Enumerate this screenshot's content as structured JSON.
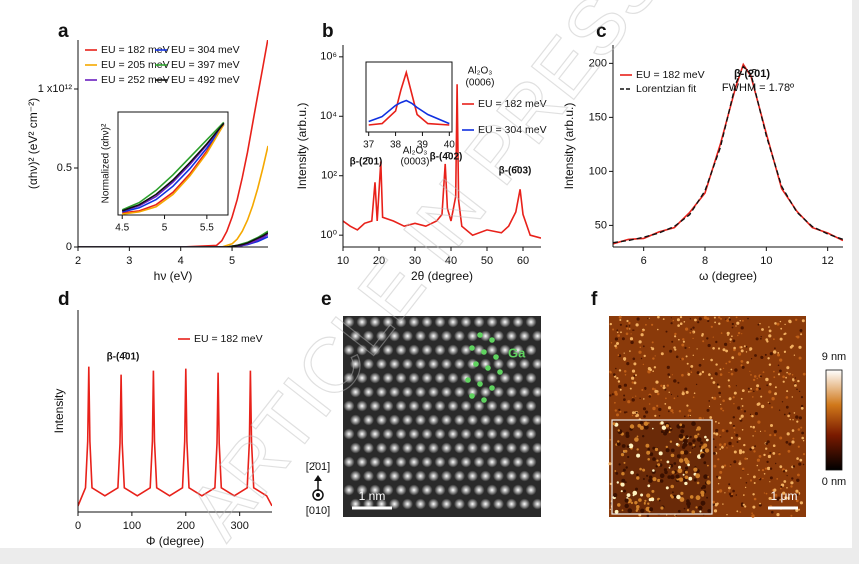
{
  "chart_data": [
    {
      "type": "line",
      "panel_label": "a",
      "xlabel": "hν (eV)",
      "ylabel": "(αhν)² (eV² cm⁻²)",
      "x": [
        2,
        3,
        4,
        4.7,
        4.8,
        4.9,
        5.0,
        5.1,
        5.2,
        5.3,
        5.4,
        5.5,
        5.6,
        5.7
      ],
      "xlim": [
        2,
        5.7
      ],
      "xticks": [
        2,
        3,
        4,
        5
      ],
      "ylim": [
        0,
        1.31
      ],
      "yticks": [
        0,
        0.5,
        {
          "value": 1,
          "label": "1 x10¹²"
        }
      ],
      "series": [
        {
          "name": "EU = 182 meV",
          "color": "#e8211a",
          "values": [
            0,
            0,
            0,
            0.01,
            0.04,
            0.1,
            0.19,
            0.3,
            0.44,
            0.6,
            0.78,
            0.96,
            1.14,
            1.32
          ]
        },
        {
          "name": "EU = 304 meV",
          "color": "#1030e0",
          "values": [
            0,
            0,
            0,
            0,
            0,
            0,
            0,
            0.005,
            0.01,
            0.015,
            0.025,
            0.035,
            0.05,
            0.065
          ]
        },
        {
          "name": "EU = 205 meV",
          "color": "#f5a800",
          "values": [
            0,
            0,
            0,
            0,
            0,
            0.01,
            0.02,
            0.05,
            0.1,
            0.17,
            0.26,
            0.37,
            0.5,
            0.64
          ]
        },
        {
          "name": "EU = 397 meV",
          "color": "#2ca02c",
          "values": [
            0,
            0,
            0,
            0,
            0,
            0,
            0.005,
            0.01,
            0.02,
            0.03,
            0.045,
            0.06,
            0.08,
            0.1
          ]
        },
        {
          "name": "EU = 252 meV",
          "color": "#6a1fc0",
          "values": [
            0,
            0,
            0,
            0,
            0,
            0,
            0,
            0.005,
            0.01,
            0.02,
            0.03,
            0.045,
            0.06,
            0.08
          ]
        },
        {
          "name": "EU = 492 meV",
          "color": "#111111",
          "values": [
            0,
            0,
            0,
            0,
            0,
            0,
            0.005,
            0.01,
            0.015,
            0.025,
            0.04,
            0.055,
            0.07,
            0.09
          ]
        }
      ],
      "inset": {
        "type": "line",
        "ylabel": "Normalized (αhν)²",
        "x": [
          4.5,
          4.7,
          4.9,
          5.1,
          5.3,
          5.5,
          5.7
        ],
        "xlim": [
          4.45,
          5.75
        ],
        "xticks": [
          4.5,
          5,
          5.5
        ],
        "ylim": [
          0,
          1
        ],
        "series": [
          {
            "color": "#e8211a",
            "values": [
              0.02,
              0.04,
              0.1,
              0.22,
              0.4,
              0.62,
              0.88
            ]
          },
          {
            "color": "#1030e0",
            "values": [
              0.03,
              0.07,
              0.15,
              0.28,
              0.45,
              0.65,
              0.88
            ]
          },
          {
            "color": "#f5a800",
            "values": [
              0.01,
              0.03,
              0.08,
              0.2,
              0.38,
              0.6,
              0.88
            ]
          },
          {
            "color": "#2ca02c",
            "values": [
              0.05,
              0.12,
              0.24,
              0.39,
              0.56,
              0.73,
              0.9
            ]
          },
          {
            "color": "#6a1fc0",
            "values": [
              0.04,
              0.09,
              0.18,
              0.32,
              0.49,
              0.68,
              0.89
            ]
          },
          {
            "color": "#111111",
            "values": [
              0.04,
              0.1,
              0.2,
              0.34,
              0.51,
              0.69,
              0.89
            ]
          }
        ]
      }
    },
    {
      "type": "line",
      "panel_label": "b",
      "xlabel": "2θ (degree)",
      "ylabel": "Intensity (arb.u.)",
      "log": true,
      "x": [
        10,
        12,
        14,
        16,
        18,
        18.9,
        19.5,
        20.5,
        21,
        24,
        27,
        30,
        33,
        36,
        37.5,
        38.4,
        39,
        40,
        41.3,
        41.7,
        42.1,
        43,
        46,
        50,
        54,
        56,
        58,
        59.2,
        60,
        62,
        65
      ],
      "xlim": [
        10,
        65
      ],
      "xticks": [
        10,
        20,
        30,
        40,
        50,
        60
      ],
      "ylim": [
        0.4,
        2500000
      ],
      "yticks": [
        {
          "value": 1,
          "label": "10⁰"
        },
        {
          "value": 100,
          "label": "10²"
        },
        {
          "value": 10000,
          "label": "10⁴"
        },
        {
          "value": 1000000,
          "label": "10⁶"
        }
      ],
      "series": [
        {
          "color": "#e8211a",
          "values": [
            3,
            2,
            1.5,
            2.5,
            3,
            60,
            3,
            300,
            4,
            3,
            2,
            2.5,
            2,
            3,
            5,
            250,
            8,
            3,
            20,
            120000,
            15,
            2,
            1,
            1.5,
            1.2,
            2,
            6,
            35,
            5,
            1,
            0.8
          ]
        }
      ],
      "annotations": [
        "β-(2̄01)",
        "Al₂O₃",
        "(0003)",
        "β-(4̄02)",
        "Al₂O₃",
        "(0006)",
        "β-(6̄03)"
      ],
      "inset": {
        "type": "line",
        "x": [
          37,
          37.5,
          38,
          38.2,
          38.4,
          38.6,
          38.8,
          39.2,
          40
        ],
        "xlim": [
          36.9,
          40.1
        ],
        "xticks": [
          37,
          38,
          39,
          40
        ],
        "ylim": [
          0,
          1
        ],
        "series": [
          {
            "name": "EU = 182 meV",
            "color": "#e8211a",
            "values": [
              0.1,
              0.12,
              0.3,
              0.6,
              0.85,
              0.55,
              0.25,
              0.12,
              0.1
            ]
          },
          {
            "name": "EU = 304 meV",
            "color": "#1030e0",
            "values": [
              0.15,
              0.22,
              0.38,
              0.42,
              0.45,
              0.41,
              0.35,
              0.25,
              0.12
            ]
          }
        ]
      }
    },
    {
      "type": "line",
      "panel_label": "c",
      "xlabel": "ω (degree)",
      "ylabel": "Intensity (arb.u.)",
      "x": [
        5,
        5.5,
        6,
        6.5,
        7,
        7.5,
        8,
        8.5,
        9,
        9.25,
        9.5,
        10,
        10.5,
        11,
        11.5,
        12,
        12.5
      ],
      "xlim": [
        5,
        12.5
      ],
      "xticks": [
        6,
        8,
        10,
        12
      ],
      "ylim": [
        30,
        217
      ],
      "yticks": [
        50,
        100,
        150,
        200
      ],
      "series": [
        {
          "name": "EU = 182 meV",
          "color": "#e8211a",
          "values": [
            33,
            37,
            38,
            44,
            48,
            62,
            80,
            125,
            178,
            199,
            188,
            135,
            84,
            63,
            48,
            43,
            36
          ]
        },
        {
          "name": "Lorentzian fit",
          "color": "#111111",
          "dash": true,
          "values": [
            34,
            36,
            39,
            43,
            49,
            60,
            82,
            122,
            181,
            197,
            190,
            133,
            86,
            62,
            49,
            42,
            37
          ]
        }
      ],
      "annotations": [
        "β-(2̄01)",
        "FWHM = 1.78º"
      ]
    },
    {
      "type": "line",
      "panel_label": "d",
      "xlabel": "Φ (degree)",
      "ylabel": "Intensity",
      "x": [
        0,
        14,
        18,
        20,
        22,
        26,
        50,
        74,
        78,
        80,
        82,
        86,
        110,
        134,
        138,
        140,
        142,
        146,
        170,
        194,
        198,
        200,
        202,
        206,
        230,
        254,
        258,
        260,
        262,
        266,
        290,
        314,
        318,
        320,
        322,
        326,
        350,
        360
      ],
      "xlim": [
        0,
        360
      ],
      "xticks": [
        0,
        100,
        200,
        300
      ],
      "ylim": [
        0,
        1
      ],
      "series": [
        {
          "name": "EU = 182 meV",
          "color": "#e8211a",
          "values": [
            0.03,
            0.12,
            0.35,
            0.72,
            0.35,
            0.12,
            0.08,
            0.12,
            0.34,
            0.68,
            0.34,
            0.12,
            0.08,
            0.12,
            0.35,
            0.7,
            0.35,
            0.12,
            0.08,
            0.12,
            0.35,
            0.71,
            0.35,
            0.12,
            0.08,
            0.12,
            0.34,
            0.69,
            0.34,
            0.12,
            0.08,
            0.12,
            0.35,
            0.7,
            0.35,
            0.12,
            0.08,
            0.03
          ]
        }
      ],
      "annotations": [
        "β-(4̄01)"
      ]
    }
  ],
  "images": [
    {
      "panel_label": "e",
      "element_label": "Ga",
      "scale_bar": "1 nm",
      "direction_top": "[2̄01]",
      "direction_bottom": "[010]"
    },
    {
      "panel_label": "f",
      "colorbar_max": "9 nm",
      "colorbar_min": "0 nm",
      "scale_bar": "1 μm"
    }
  ],
  "watermark": "ARTICLE IN PRESS"
}
